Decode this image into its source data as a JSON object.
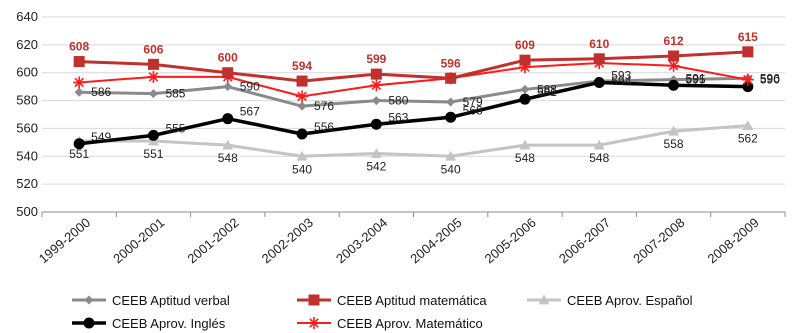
{
  "chart_data": {
    "type": "line",
    "title": "",
    "xlabel": "",
    "ylabel": "",
    "ylim": [
      500,
      640
    ],
    "yticks": [
      500,
      520,
      540,
      560,
      580,
      600,
      620,
      640
    ],
    "grid": true,
    "legend_position": "bottom",
    "categories": [
      "1999-2000",
      "2000-2001",
      "2001-2002",
      "2002-2003",
      "2003-2004",
      "2004-2005",
      "2005-2006",
      "2006-2007",
      "2007-2008",
      "2008-2009"
    ],
    "series": [
      {
        "name": "CEEB Aptitud verbal",
        "color": "#8a8a8a",
        "marker": "diamond",
        "values": [
          586,
          585,
          590,
          576,
          580,
          579,
          588,
          594,
          595,
          596
        ]
      },
      {
        "name": "CEEB Aptitud matemática",
        "color": "#c0302c",
        "marker": "square",
        "values": [
          608,
          606,
          600,
          594,
          599,
          596,
          609,
          610,
          612,
          615
        ]
      },
      {
        "name": "CEEB Aprov. Español",
        "color": "#c4c4c4",
        "marker": "triangle",
        "values": [
          551,
          551,
          548,
          540,
          542,
          540,
          548,
          548,
          558,
          562
        ]
      },
      {
        "name": "CEEB Aprov. Inglés",
        "color": "#000000",
        "marker": "circle",
        "values": [
          549,
          555,
          567,
          556,
          563,
          568,
          581,
          593,
          591,
          590
        ]
      },
      {
        "name": "CEEB Aprov. Matemático",
        "color": "#ff1a1a",
        "marker": "star",
        "values": [
          593,
          597,
          597,
          583,
          591,
          596,
          604,
          607,
          605,
          595
        ]
      }
    ],
    "data_labels": [
      {
        "series": 0,
        "index": 0,
        "text": "586"
      },
      {
        "series": 0,
        "index": 1,
        "text": "585"
      },
      {
        "series": 0,
        "index": 2,
        "text": "590"
      },
      {
        "series": 0,
        "index": 3,
        "text": "576"
      },
      {
        "series": 0,
        "index": 4,
        "text": "580"
      },
      {
        "series": 0,
        "index": 5,
        "text": "579"
      },
      {
        "series": 0,
        "index": 6,
        "text": "588"
      },
      {
        "series": 0,
        "index": 7,
        "text": "594"
      },
      {
        "series": 0,
        "index": 8,
        "text": "595"
      },
      {
        "series": 0,
        "index": 9,
        "text": "596"
      },
      {
        "series": 1,
        "index": 0,
        "text": "608"
      },
      {
        "series": 1,
        "index": 1,
        "text": "606"
      },
      {
        "series": 1,
        "index": 2,
        "text": "600"
      },
      {
        "series": 1,
        "index": 3,
        "text": "594"
      },
      {
        "series": 1,
        "index": 4,
        "text": "599"
      },
      {
        "series": 1,
        "index": 5,
        "text": "596"
      },
      {
        "series": 1,
        "index": 6,
        "text": "609"
      },
      {
        "series": 1,
        "index": 7,
        "text": "610"
      },
      {
        "series": 1,
        "index": 8,
        "text": "612"
      },
      {
        "series": 1,
        "index": 9,
        "text": "615"
      },
      {
        "series": 2,
        "index": 0,
        "text": "551"
      },
      {
        "series": 2,
        "index": 1,
        "text": "551"
      },
      {
        "series": 2,
        "index": 2,
        "text": "548"
      },
      {
        "series": 2,
        "index": 3,
        "text": "540"
      },
      {
        "series": 2,
        "index": 4,
        "text": "542"
      },
      {
        "series": 2,
        "index": 5,
        "text": "540"
      },
      {
        "series": 2,
        "index": 6,
        "text": "548"
      },
      {
        "series": 2,
        "index": 7,
        "text": "548"
      },
      {
        "series": 2,
        "index": 8,
        "text": "558"
      },
      {
        "series": 2,
        "index": 9,
        "text": "562"
      },
      {
        "series": 3,
        "index": 0,
        "text": "549"
      },
      {
        "series": 3,
        "index": 1,
        "text": "555"
      },
      {
        "series": 3,
        "index": 2,
        "text": "567"
      },
      {
        "series": 3,
        "index": 3,
        "text": "556"
      },
      {
        "series": 3,
        "index": 4,
        "text": "563"
      },
      {
        "series": 3,
        "index": 5,
        "text": "568"
      },
      {
        "series": 3,
        "index": 6,
        "text": "581"
      },
      {
        "series": 3,
        "index": 7,
        "text": "593"
      },
      {
        "series": 3,
        "index": 8,
        "text": "591"
      },
      {
        "series": 3,
        "index": 9,
        "text": "590"
      }
    ]
  }
}
